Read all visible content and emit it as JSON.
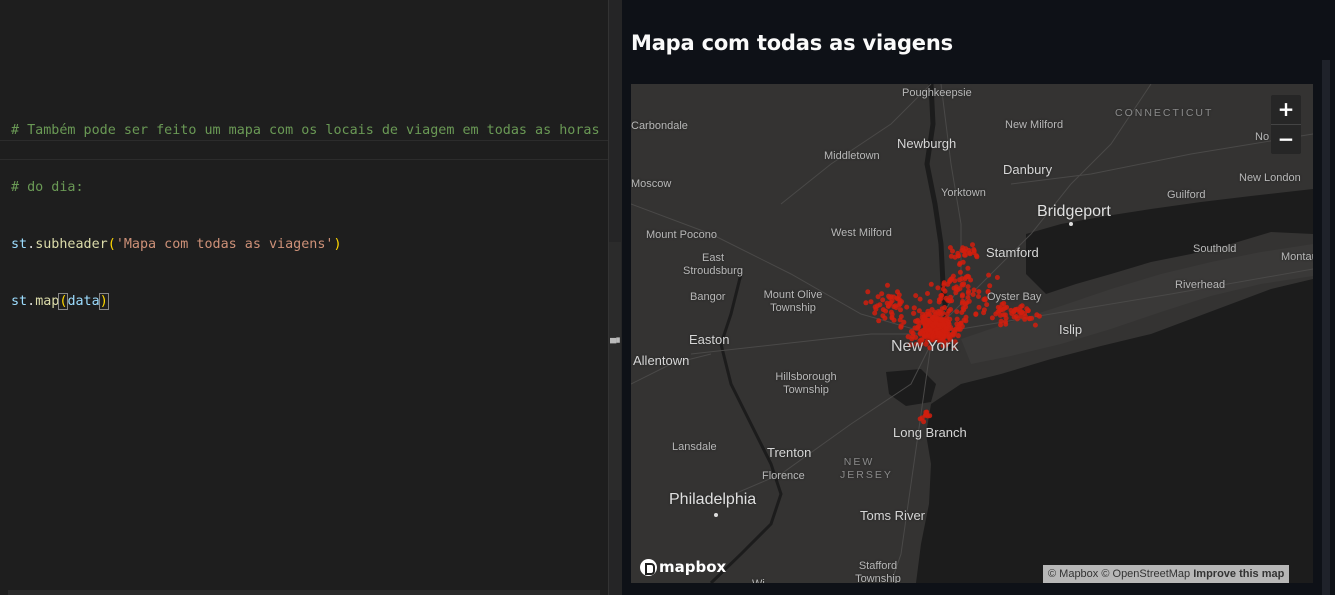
{
  "editor": {
    "lines": [
      "# Também pode ser feito um mapa com os locais de viagem em todas as horas",
      "# do dia:",
      "st.subheader('Mapa com todas as viagens')",
      "st.map(data)"
    ],
    "line3": {
      "obj": "st",
      "dot": ".",
      "fn": "subheader",
      "open": "(",
      "str": "'Mapa com todas as viagens'",
      "close": ")"
    },
    "line4": {
      "obj": "st",
      "dot": ".",
      "fn": "map",
      "open": "(",
      "arg": "data",
      "close": ")"
    }
  },
  "preview": {
    "subheader": "Mapa com todas as viagens"
  },
  "map": {
    "zoom_in": "+",
    "zoom_out": "−",
    "logo": "mapbox",
    "attribution": "© Mapbox © OpenStreetMap",
    "improve": "Improve this map",
    "places": {
      "poughkeepsie": "Poughkeepsie",
      "connecticut": "CONNECTICUT",
      "carbondale": "Carbondale",
      "new_milford": "New Milford",
      "norwich": "No",
      "newburgh": "Newburgh",
      "middletown": "Middletown",
      "danbury": "Danbury",
      "moscow": "Moscow",
      "new_london": "New London",
      "yorktown": "Yorktown",
      "guilford": "Guilford",
      "bridgeport": "Bridgeport",
      "mount_pocono": "Mount Pocono",
      "west_milford": "West Milford",
      "stamford": "Stamford",
      "southold": "Southold",
      "montauk": "Montau",
      "east_stroudsburg": "East Stroudsburg",
      "riverhead": "Riverhead",
      "bangor": "Bangor",
      "mount_olive": "Mount Olive Township",
      "oyster_bay": "Oyster Bay",
      "islip": "Islip",
      "easton": "Easton",
      "new_york": "New York",
      "allentown": "Allentown",
      "hillsborough": "Hillsborough Township",
      "long_branch": "Long Branch",
      "lansdale": "Lansdale",
      "trenton": "Trenton",
      "new_jersey": "NEW JERSEY",
      "florence": "Florence",
      "philadelphia": "Philadelphia",
      "toms_river": "Toms River",
      "stafford": "Stafford Township",
      "w_partial": "Wi"
    }
  },
  "colors": {
    "points": "#d11f0e",
    "map_background": "#343332",
    "water": "#1c1c1c",
    "app_background": "#0e1117"
  }
}
